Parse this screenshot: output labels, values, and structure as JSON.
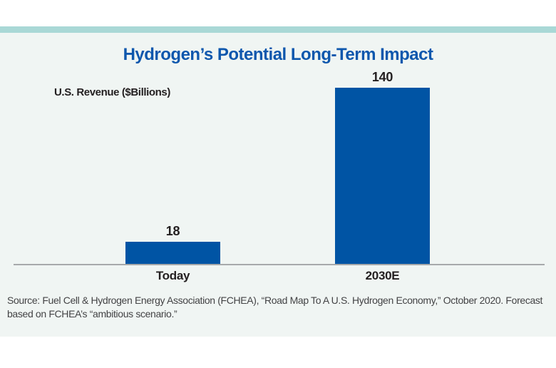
{
  "colors": {
    "accent_bar": "#a9d8d6",
    "panel_background": "#f0f5f3",
    "bar_blue": "#0054a4",
    "title_blue": "#0e57ad",
    "text_dark": "#231f20",
    "source_gray": "#434345",
    "axis_gray": "#a7a9ab"
  },
  "chart": {
    "title": "Hydrogen’s Potential Long-Term Impact",
    "axis_label": "U.S. Revenue ($Billions)",
    "bars": [
      {
        "label": "Today",
        "value": 18,
        "value_label": "18"
      },
      {
        "label": "2030E",
        "value": 140,
        "value_label": "140"
      }
    ]
  },
  "chart_data": {
    "type": "bar",
    "categories": [
      "Today",
      "2030E"
    ],
    "values": [
      18,
      140
    ],
    "value_labels": [
      "18",
      "140"
    ],
    "title": "Hydrogen’s Potential Long-Term Impact",
    "xlabel": "",
    "ylabel": "U.S. Revenue ($Billions)",
    "ylim": [
      0,
      140
    ],
    "grid": false,
    "legend": "none",
    "bar_color": "#0054a4",
    "annotations": [
      "Source: Fuel Cell & Hydrogen Energy Association (FCHEA), “Road Map To A U.S. Hydrogen Economy,” October 2020. Forecast based on FCHEA’s “ambitious scenario.”"
    ]
  },
  "source": {
    "lines": [
      "Source: Fuel Cell & Hydrogen Energy Association (FCHEA), “Road Map To A U.S. Hydrogen Economy,” October 2020. Forecast",
      "based on FCHEA’s “ambitious scenario.”"
    ]
  }
}
